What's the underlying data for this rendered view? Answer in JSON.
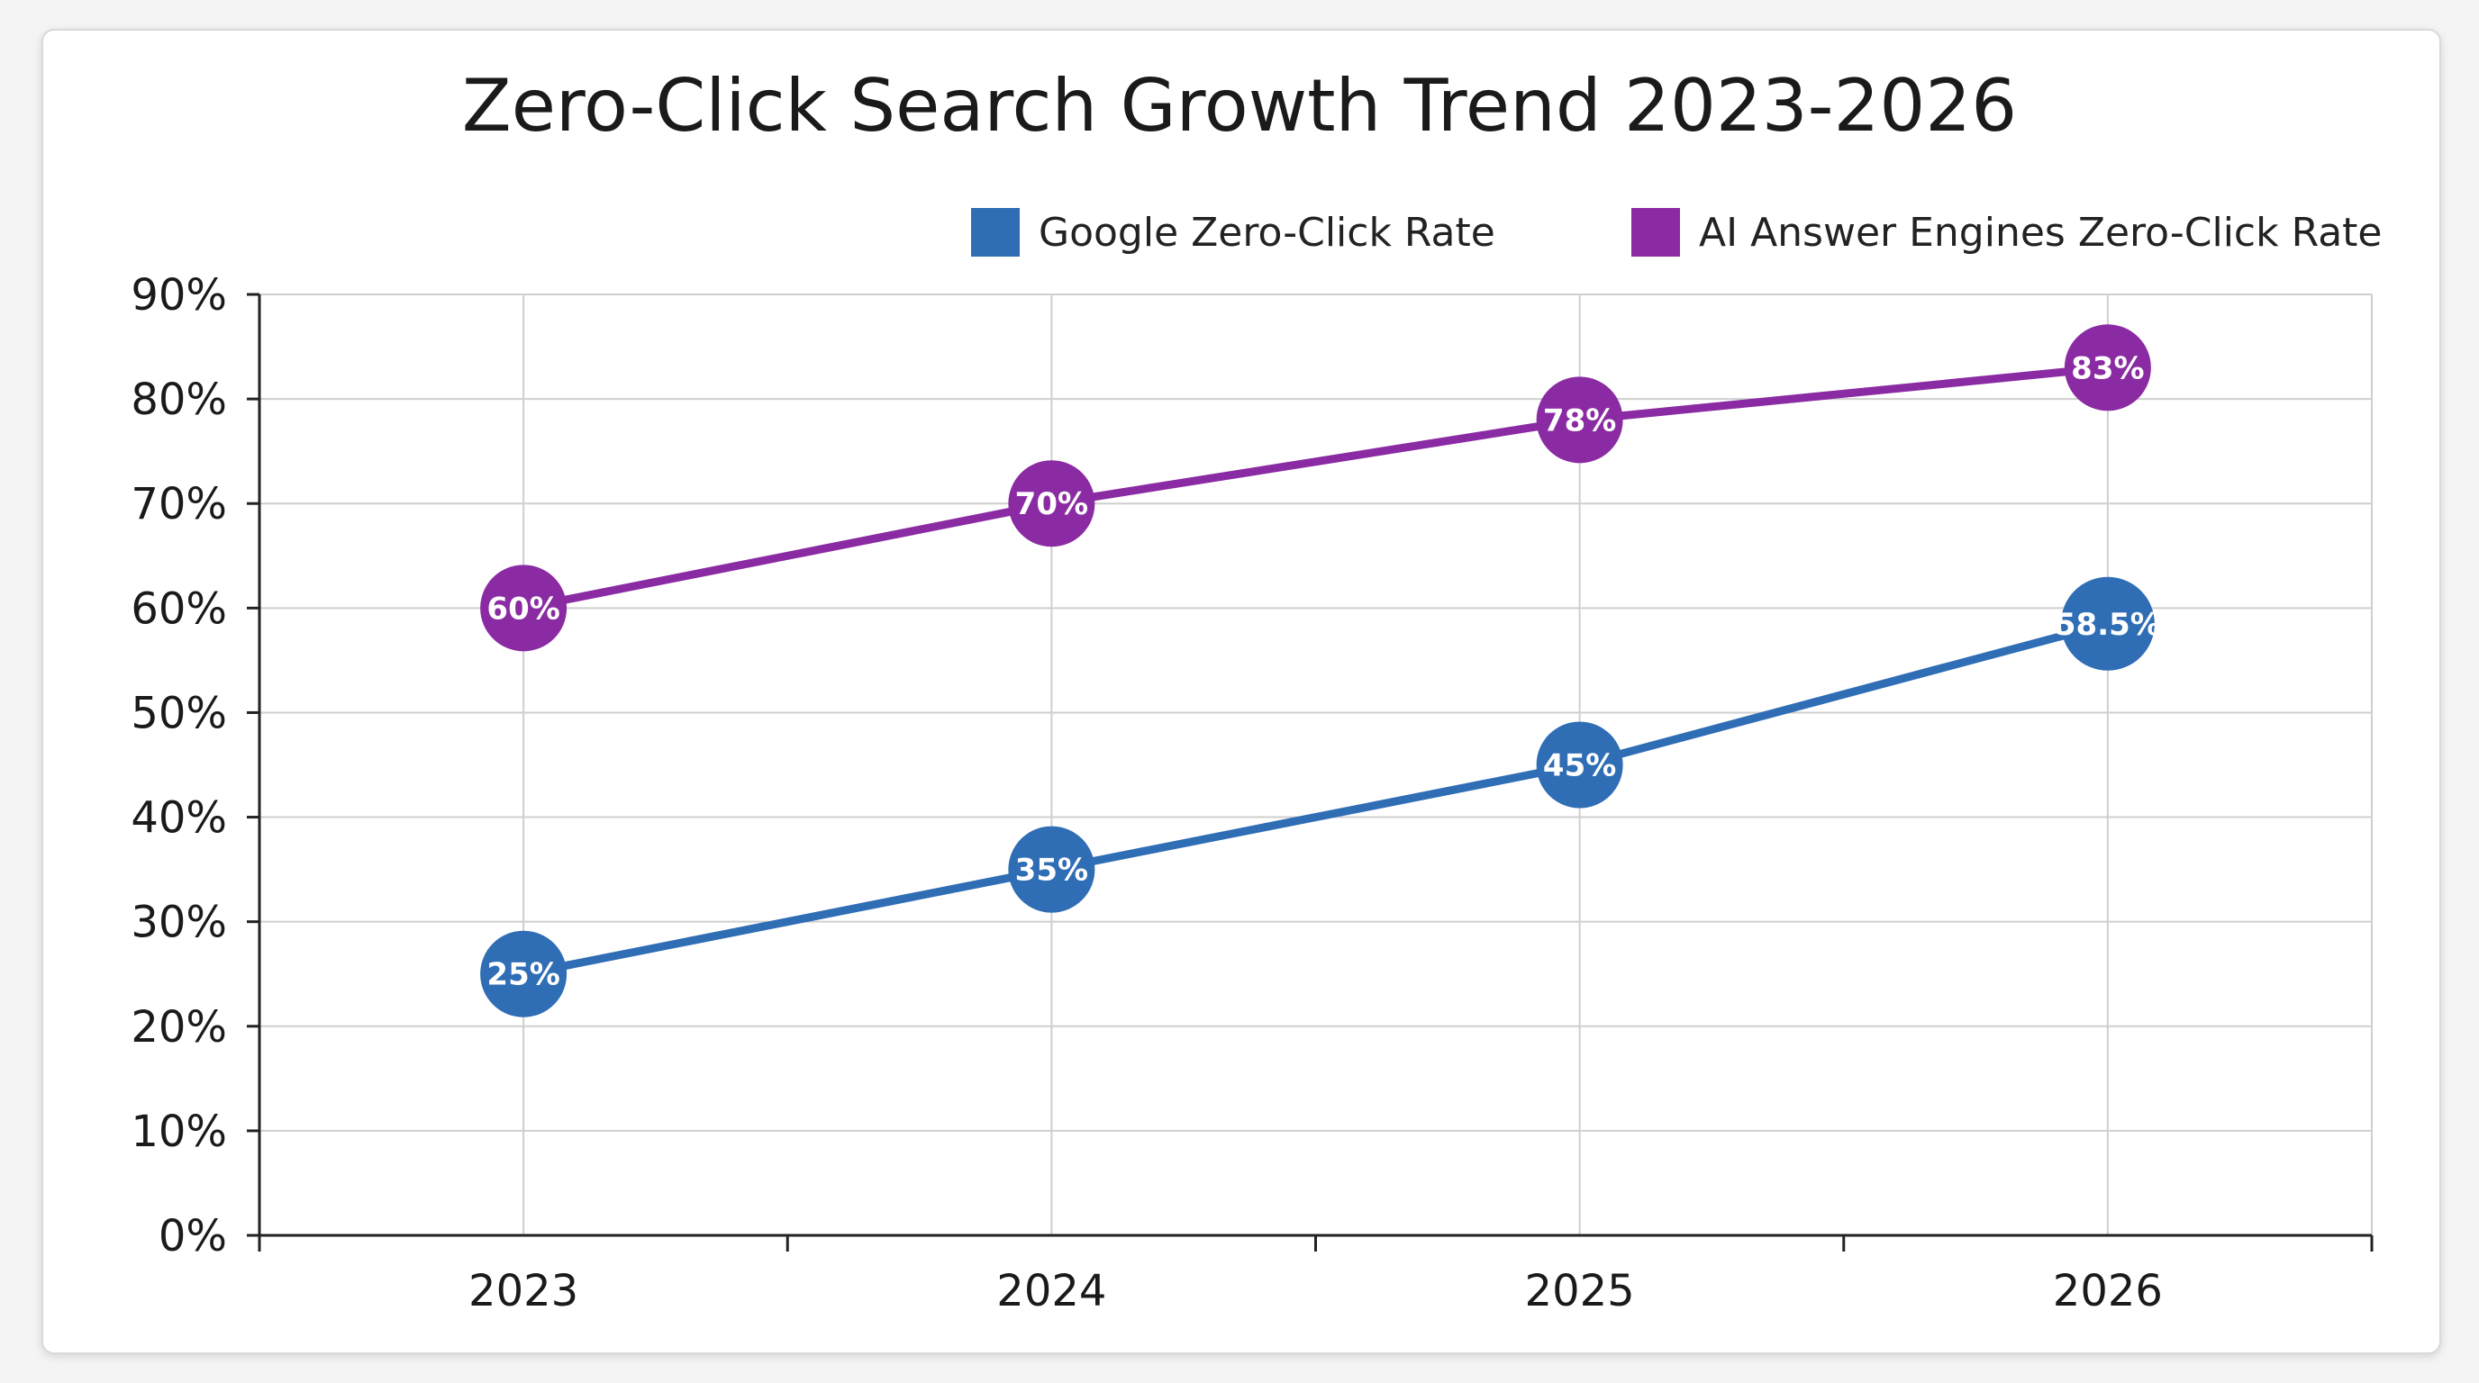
{
  "chart_data": {
    "type": "line",
    "title": "Zero-Click Search Growth Trend 2023-2026",
    "xlabel": "",
    "ylabel": "",
    "x": [
      "2023",
      "2024",
      "2025",
      "2026"
    ],
    "ylim": [
      0,
      90
    ],
    "y_ticks": [
      0,
      10,
      20,
      30,
      40,
      50,
      60,
      70,
      80,
      90
    ],
    "y_tick_labels": [
      "0%",
      "10%",
      "20%",
      "30%",
      "40%",
      "50%",
      "60%",
      "70%",
      "80%",
      "90%"
    ],
    "grid": true,
    "legend_position": "top-right",
    "series": [
      {
        "name": "Google Zero-Click Rate",
        "color": "#2f6db5",
        "values": [
          25,
          35,
          45,
          58.5
        ],
        "labels": [
          "25%",
          "35%",
          "45%",
          "58.5%"
        ]
      },
      {
        "name": "AI Answer Engines Zero-Click Rate",
        "color": "#8a2ba3",
        "values": [
          60,
          70,
          78,
          83
        ],
        "labels": [
          "60%",
          "70%",
          "78%",
          "83%"
        ]
      }
    ]
  }
}
